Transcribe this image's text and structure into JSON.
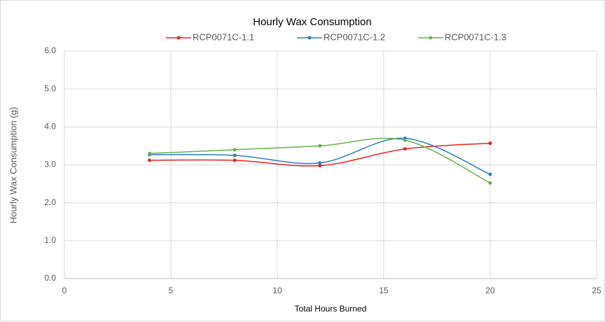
{
  "chart_data": {
    "type": "line",
    "title": "Hourly Wax Consumption",
    "x_label": "Total Hours Burned",
    "y_label": "Hourly Wax Consumption (g)",
    "x": [
      4,
      8,
      12,
      16,
      20
    ],
    "series": [
      {
        "name": "RCP0071C-1.1",
        "color": "#e8221c",
        "values": [
          3.12,
          3.12,
          2.98,
          3.42,
          3.57
        ]
      },
      {
        "name": "RCP0071C-1.2",
        "color": "#2e7bc4",
        "values": [
          3.27,
          3.25,
          3.05,
          3.7,
          2.75
        ]
      },
      {
        "name": "RCP0071C-1.3",
        "color": "#6ab04c",
        "values": [
          3.3,
          3.4,
          3.5,
          3.65,
          2.52
        ]
      }
    ],
    "xlim": [
      0,
      25
    ],
    "xticks": [
      0,
      5,
      10,
      15,
      20,
      25
    ],
    "ylim": [
      0,
      6
    ],
    "yticks": [
      {
        "value": 0,
        "label": "0.0"
      },
      {
        "value": 1,
        "label": "1.0"
      },
      {
        "value": 2,
        "label": "2.0"
      },
      {
        "value": 3,
        "label": "3.0"
      },
      {
        "value": 4,
        "label": "4.0"
      },
      {
        "value": 5,
        "label": "5.0"
      },
      {
        "value": 6,
        "label": "6.0"
      }
    ],
    "grid": true,
    "smooth": true,
    "legend": "top"
  }
}
